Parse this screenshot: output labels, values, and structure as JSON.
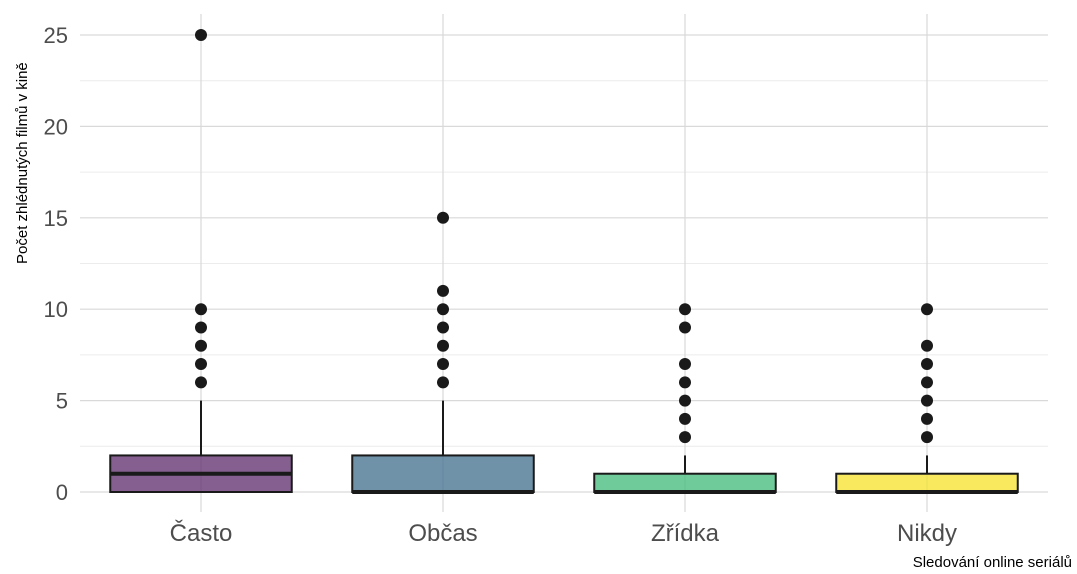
{
  "chart_data": {
    "type": "box",
    "title": "",
    "xlabel": "Sledování online seriálů",
    "ylabel": "Počet zhlédnutých filmů v kině",
    "ylim": [
      -1.2,
      26
    ],
    "yticks": [
      0,
      5,
      10,
      15,
      20,
      25
    ],
    "grid": true,
    "categories": [
      "Často",
      "Občas",
      "Zřídka",
      "Nikdy"
    ],
    "colors": [
      "#5c2a6b",
      "#3f6e8c",
      "#3fba78",
      "#f5e12a"
    ],
    "boxes": [
      {
        "category": "Často",
        "q1": 0,
        "median": 1,
        "q3": 2,
        "whisker_low": 0,
        "whisker_high": 5,
        "outliers": [
          6,
          7,
          8,
          9,
          10,
          25
        ]
      },
      {
        "category": "Občas",
        "q1": 0,
        "median": 0,
        "q3": 2,
        "whisker_low": 0,
        "whisker_high": 5,
        "outliers": [
          6,
          7,
          8,
          9,
          10,
          11,
          15
        ]
      },
      {
        "category": "Zřídka",
        "q1": 0,
        "median": 0,
        "q3": 1,
        "whisker_low": 0,
        "whisker_high": 2,
        "outliers": [
          3,
          4,
          5,
          6,
          7,
          9,
          10
        ]
      },
      {
        "category": "Nikdy",
        "q1": 0,
        "median": 0,
        "q3": 1,
        "whisker_low": 0,
        "whisker_high": 2,
        "outliers": [
          3,
          4,
          5,
          6,
          7,
          8,
          10
        ]
      }
    ]
  }
}
